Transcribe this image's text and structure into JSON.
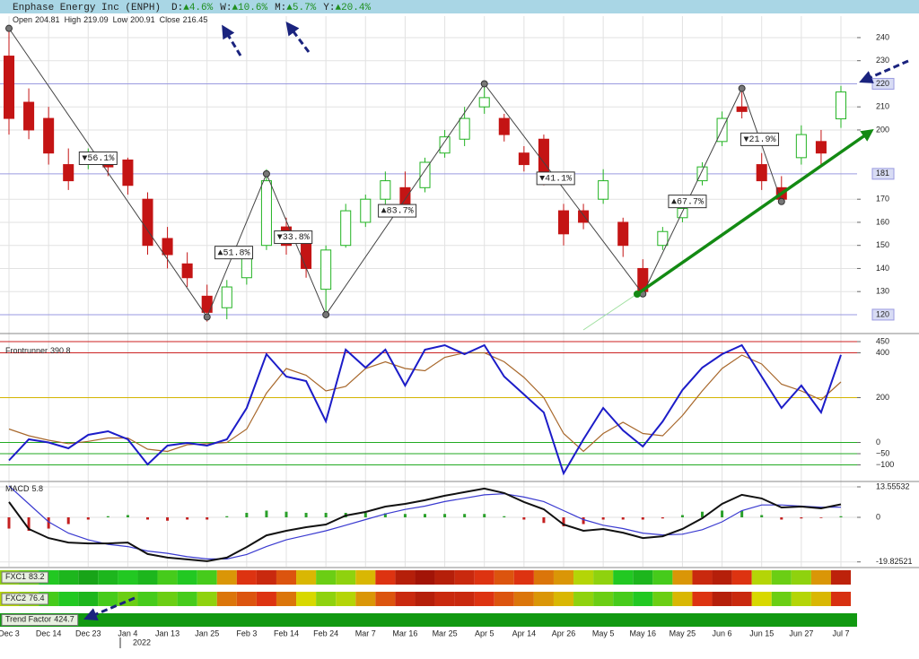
{
  "header": {
    "title": "Enphase Energy Inc (ENPH)",
    "periods": [
      {
        "label": "D:",
        "value": "▲4.6%"
      },
      {
        "label": "W:",
        "value": "▲10.6%"
      },
      {
        "label": "M:",
        "value": "▲5.7%"
      },
      {
        "label": "Y:",
        "value": "▲20.4%"
      }
    ],
    "ohlc_labels": [
      "Open",
      "High",
      "Low",
      "Close"
    ],
    "year_label": "2022"
  },
  "chart_data": [
    {
      "type": "candlestick",
      "categories": [
        "Dec 3",
        null,
        "Dec 14",
        null,
        "Dec 23",
        null,
        "Jan 4",
        null,
        "Jan 13",
        null,
        "Jan 25",
        null,
        "Feb 3",
        null,
        "Feb 14",
        null,
        "Feb 24",
        null,
        "Mar 7",
        null,
        "Mar 16",
        null,
        "Mar 25",
        null,
        "Apr 5",
        null,
        "Apr 14",
        null,
        "Apr 26",
        null,
        "May 5",
        null,
        "May 16",
        null,
        "May 25",
        null,
        "Jun 6",
        null,
        "Jun 15",
        null,
        "Jun 27",
        null,
        "Jul 7"
      ],
      "open": [
        232,
        212,
        205,
        185,
        186,
        188,
        187,
        170,
        153,
        142,
        128,
        123,
        136,
        150,
        158,
        152,
        131,
        150,
        160,
        170,
        175,
        175,
        190,
        196,
        210,
        205,
        190,
        196,
        165,
        165,
        170,
        160,
        140,
        150,
        162,
        178,
        195,
        210,
        185,
        175,
        188,
        195,
        204.81
      ],
      "high": [
        245,
        218,
        210,
        192,
        192,
        190,
        188,
        173,
        158,
        147,
        133,
        135,
        148,
        183,
        162,
        155,
        150,
        168,
        172,
        182,
        182,
        188,
        200,
        210,
        220,
        207,
        193,
        198,
        168,
        168,
        183,
        162,
        144,
        158,
        168,
        186,
        208,
        218,
        190,
        180,
        202,
        200,
        219.09
      ],
      "low": [
        198,
        196,
        185,
        174,
        183,
        180,
        172,
        146,
        140,
        132,
        117,
        118,
        133,
        148,
        146,
        136,
        120,
        149,
        158,
        166,
        164,
        173,
        188,
        193,
        207,
        195,
        182,
        176,
        150,
        157,
        168,
        145,
        128,
        148,
        160,
        176,
        193,
        205,
        174,
        168,
        185,
        185,
        200.91
      ],
      "close": [
        205,
        200,
        190,
        178,
        189,
        184,
        176,
        150,
        146,
        136,
        121,
        132,
        146,
        178,
        150,
        140,
        148,
        165,
        170,
        178,
        168,
        186,
        197,
        205,
        214,
        198,
        185,
        180,
        155,
        160,
        178,
        150,
        130,
        156,
        166,
        184,
        205,
        208,
        178,
        170,
        198,
        190,
        216.45
      ],
      "up_color": "#22b322",
      "down_color": "#c41414",
      "ylim": [
        112.6,
        249.3
      ],
      "yticks": [
        240,
        230,
        210,
        200,
        170,
        160,
        150,
        140,
        130
      ],
      "grid": true,
      "levels": [
        220,
        181,
        120
      ],
      "zigzag": {
        "x": [
          0,
          10,
          13,
          16,
          24,
          32,
          37,
          39
        ],
        "values": [
          244,
          119,
          181,
          120,
          220,
          129,
          218,
          169
        ],
        "changes": [
          -56.1,
          51.8,
          -33.8,
          83.7,
          -41.1,
          67.7,
          -21.9
        ],
        "change_labels": [
          "▼56.1%",
          "▲51.8%",
          "▼33.8%",
          "▲83.7%",
          "▼41.1%",
          "▲67.7%",
          "▼21.9%"
        ]
      }
    },
    {
      "type": "line",
      "title": "Frontrunner",
      "series": [
        {
          "color": "#1c1cc8",
          "values": [
            -80,
            14,
            0,
            -26,
            34,
            50,
            14,
            -98,
            -14,
            -2,
            -14,
            14,
            154,
            394,
            294,
            274,
            94,
            414,
            334,
            414,
            254,
            414,
            434,
            394,
            434,
            294,
            214,
            134,
            -138,
            14,
            154,
            54,
            -18,
            94,
            234,
            334,
            394,
            434,
            294,
            154,
            254,
            134,
            390.8
          ]
        },
        {
          "color": "#a8682c",
          "values": [
            60,
            30,
            10,
            -5,
            5,
            20,
            20,
            -30,
            -40,
            -10,
            -5,
            0,
            60,
            220,
            330,
            300,
            230,
            250,
            330,
            360,
            330,
            320,
            380,
            400,
            400,
            360,
            290,
            200,
            40,
            -40,
            40,
            90,
            40,
            30,
            120,
            230,
            330,
            390,
            350,
            260,
            230,
            190,
            270
          ]
        }
      ],
      "ylim": [
        -166,
        478
      ],
      "yticks": [
        450,
        400,
        200,
        0,
        {
          "value": -50,
          "label": "−50"
        },
        {
          "value": -100,
          "label": "−100"
        }
      ],
      "grid_colors": [
        "#cc2222",
        "#cc2222",
        "#d4b400",
        "#22aa22",
        "#22aa22",
        "#22aa22"
      ]
    },
    {
      "type": "macd",
      "title": "MACD",
      "series": [
        {
          "color": "#111111",
          "values": [
            6.8,
            -5.2,
            -9.2,
            -11.2,
            -11.6,
            -11.6,
            -11.2,
            -16.3,
            -17.9,
            -18.7,
            -19.5,
            -17.9,
            -13.2,
            -8,
            -6,
            -4.4,
            -3.2,
            0.8,
            2.4,
            4.8,
            6,
            7.6,
            9.6,
            11.2,
            12.8,
            10.8,
            6.8,
            3.6,
            -3.2,
            -6,
            -5.2,
            -6.8,
            -9.2,
            -8.4,
            -5.2,
            -0.4,
            6,
            10,
            8.4,
            4.4,
            4.8,
            4,
            5.8
          ]
        },
        {
          "color": "#3a3ad0",
          "values": [
            14,
            6,
            -2,
            -7,
            -10,
            -12,
            -13,
            -15,
            -16,
            -17.5,
            -18.5,
            -18.5,
            -16.5,
            -13,
            -10,
            -8,
            -6,
            -3.5,
            -1,
            1.5,
            3.5,
            5,
            7,
            8.5,
            10,
            10.5,
            9,
            7,
            3,
            -1,
            -3.5,
            -5,
            -7,
            -7.8,
            -7.5,
            -5.5,
            -2,
            3,
            5.5,
            5.5,
            5,
            4.5,
            4.5
          ]
        }
      ],
      "histogram": [
        -5,
        -6,
        -5,
        -3,
        -1,
        0.5,
        1,
        -1,
        -1.5,
        -1,
        -1,
        0.5,
        2,
        3,
        2.5,
        2,
        2,
        2,
        2,
        1.8,
        1.5,
        1.5,
        1.5,
        1.5,
        1.5,
        0.5,
        -1,
        -2.5,
        -4,
        -3,
        -1,
        -1,
        -1,
        -0.5,
        1,
        2.5,
        3,
        3,
        1,
        -1,
        -0.5,
        -0.3,
        0.5
      ],
      "positive_color": "#2aa02a",
      "negative_color": "#c42020",
      "ylim": [
        -21.93,
        15.55
      ],
      "yticks": [
        13.55532,
        0,
        -19.82521
      ]
    },
    {
      "type": "heatmap",
      "title": "FXC1",
      "values": [
        40,
        35,
        25,
        20,
        15,
        20,
        25,
        20,
        30,
        25,
        30,
        60,
        75,
        80,
        70,
        55,
        35,
        40,
        55,
        75,
        85,
        90,
        85,
        80,
        75,
        70,
        75,
        65,
        60,
        45,
        40,
        25,
        20,
        30,
        60,
        80,
        85,
        75,
        45,
        35,
        40,
        60,
        83.2
      ],
      "clim": [
        0,
        100
      ],
      "colors": [
        "#0a6e0a",
        "#22c822",
        "#d8d800",
        "#dd3311",
        "#7a0000"
      ]
    },
    {
      "type": "heatmap",
      "title": "FXC2",
      "values": [
        45,
        40,
        30,
        25,
        20,
        30,
        35,
        30,
        35,
        30,
        40,
        65,
        70,
        75,
        65,
        50,
        40,
        45,
        60,
        70,
        80,
        85,
        80,
        80,
        75,
        70,
        65,
        60,
        55,
        40,
        35,
        30,
        25,
        35,
        55,
        75,
        85,
        80,
        50,
        35,
        45,
        55,
        76.4
      ],
      "clim": [
        0,
        100
      ],
      "colors": [
        "#0a6e0a",
        "#22c822",
        "#d8d800",
        "#dd3311",
        "#7a0000"
      ]
    },
    {
      "type": "band",
      "title": "Trend Factor",
      "value": 424.7,
      "color": "#119911"
    }
  ]
}
